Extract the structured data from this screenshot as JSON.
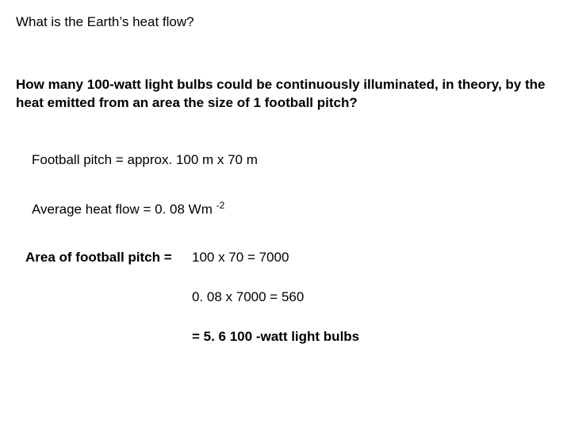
{
  "title": "What is the Earth’s heat flow?",
  "question": "How many 100-watt light bulbs could be continuously illuminated, in theory, by the heat emitted from an area the size of 1 football pitch?",
  "given": {
    "pitch": "Football pitch = approx. 100 m x 70 m",
    "heatflow_prefix": "Average heat flow = 0. 08 Wm ",
    "heatflow_exp": "-2"
  },
  "calc": {
    "area_label": "Area of football pitch =",
    "area_value": "100 x 70 = 7000",
    "flow_value": "0. 08 x 7000 = 560",
    "result": "= 5. 6 100 -watt light bulbs"
  }
}
